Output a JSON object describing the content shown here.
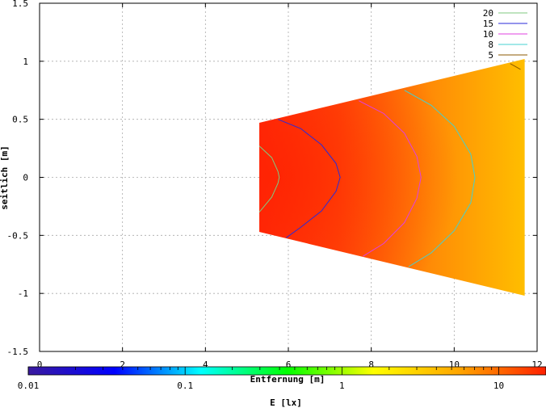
{
  "chart_data": {
    "type": "heatmap",
    "xlabel": "Entfernung [m]",
    "ylabel": "seitlich [m]",
    "xlim": [
      0,
      12
    ],
    "ylim": [
      -1.5,
      1.5
    ],
    "x_ticks": [
      "0",
      "2",
      "4",
      "6",
      "8",
      "10",
      "12"
    ],
    "y_ticks": [
      "1.5",
      "1",
      "0.5",
      "0",
      "-0.5",
      "-1",
      "-1.5"
    ],
    "grid": true,
    "legend_placement": "top-right",
    "illuminated_region": {
      "x_start": 5.3,
      "x_end": 11.7,
      "y_half_width_start": 0.47,
      "y_half_width_end": 1.02
    },
    "contour_series": [
      {
        "name": "20",
        "color": "#7fc97f",
        "points": [
          [
            5.3,
            0.27
          ],
          [
            5.6,
            0.17
          ],
          [
            5.75,
            0.05
          ],
          [
            5.78,
            0.0
          ],
          [
            5.75,
            -0.05
          ],
          [
            5.6,
            -0.17
          ],
          [
            5.3,
            -0.3
          ]
        ]
      },
      {
        "name": "15",
        "color": "#2a2ad9",
        "points": [
          [
            5.75,
            0.5
          ],
          [
            6.3,
            0.42
          ],
          [
            6.8,
            0.28
          ],
          [
            7.15,
            0.12
          ],
          [
            7.25,
            0.0
          ],
          [
            7.15,
            -0.12
          ],
          [
            6.8,
            -0.29
          ],
          [
            6.3,
            -0.43
          ],
          [
            5.95,
            -0.52
          ]
        ]
      },
      {
        "name": "10",
        "color": "#e040e0",
        "points": [
          [
            7.7,
            0.66
          ],
          [
            8.3,
            0.55
          ],
          [
            8.8,
            0.38
          ],
          [
            9.1,
            0.18
          ],
          [
            9.2,
            0.0
          ],
          [
            9.1,
            -0.18
          ],
          [
            8.8,
            -0.39
          ],
          [
            8.3,
            -0.57
          ],
          [
            7.8,
            -0.68
          ]
        ]
      },
      {
        "name": "8",
        "color": "#44d0d0",
        "points": [
          [
            8.8,
            0.75
          ],
          [
            9.45,
            0.62
          ],
          [
            10.0,
            0.44
          ],
          [
            10.4,
            0.2
          ],
          [
            10.5,
            0.0
          ],
          [
            10.4,
            -0.22
          ],
          [
            10.0,
            -0.46
          ],
          [
            9.45,
            -0.65
          ],
          [
            8.9,
            -0.77
          ]
        ]
      },
      {
        "name": "5",
        "color": "#8b5a00",
        "points": [
          [
            11.35,
            0.98
          ],
          [
            11.6,
            0.93
          ]
        ]
      }
    ],
    "colorbar": {
      "label": "E [lx]",
      "scale": "log",
      "range": [
        0.01,
        20
      ],
      "tick_labels": [
        "0.01",
        "0.1",
        "1",
        "10"
      ],
      "tick_values": [
        0.01,
        0.1,
        1,
        10
      ],
      "colors": [
        "#3a1a9e",
        "#0000ff",
        "#00ffff",
        "#00ff00",
        "#ffff00",
        "#ffa500",
        "#ff2000"
      ]
    }
  }
}
